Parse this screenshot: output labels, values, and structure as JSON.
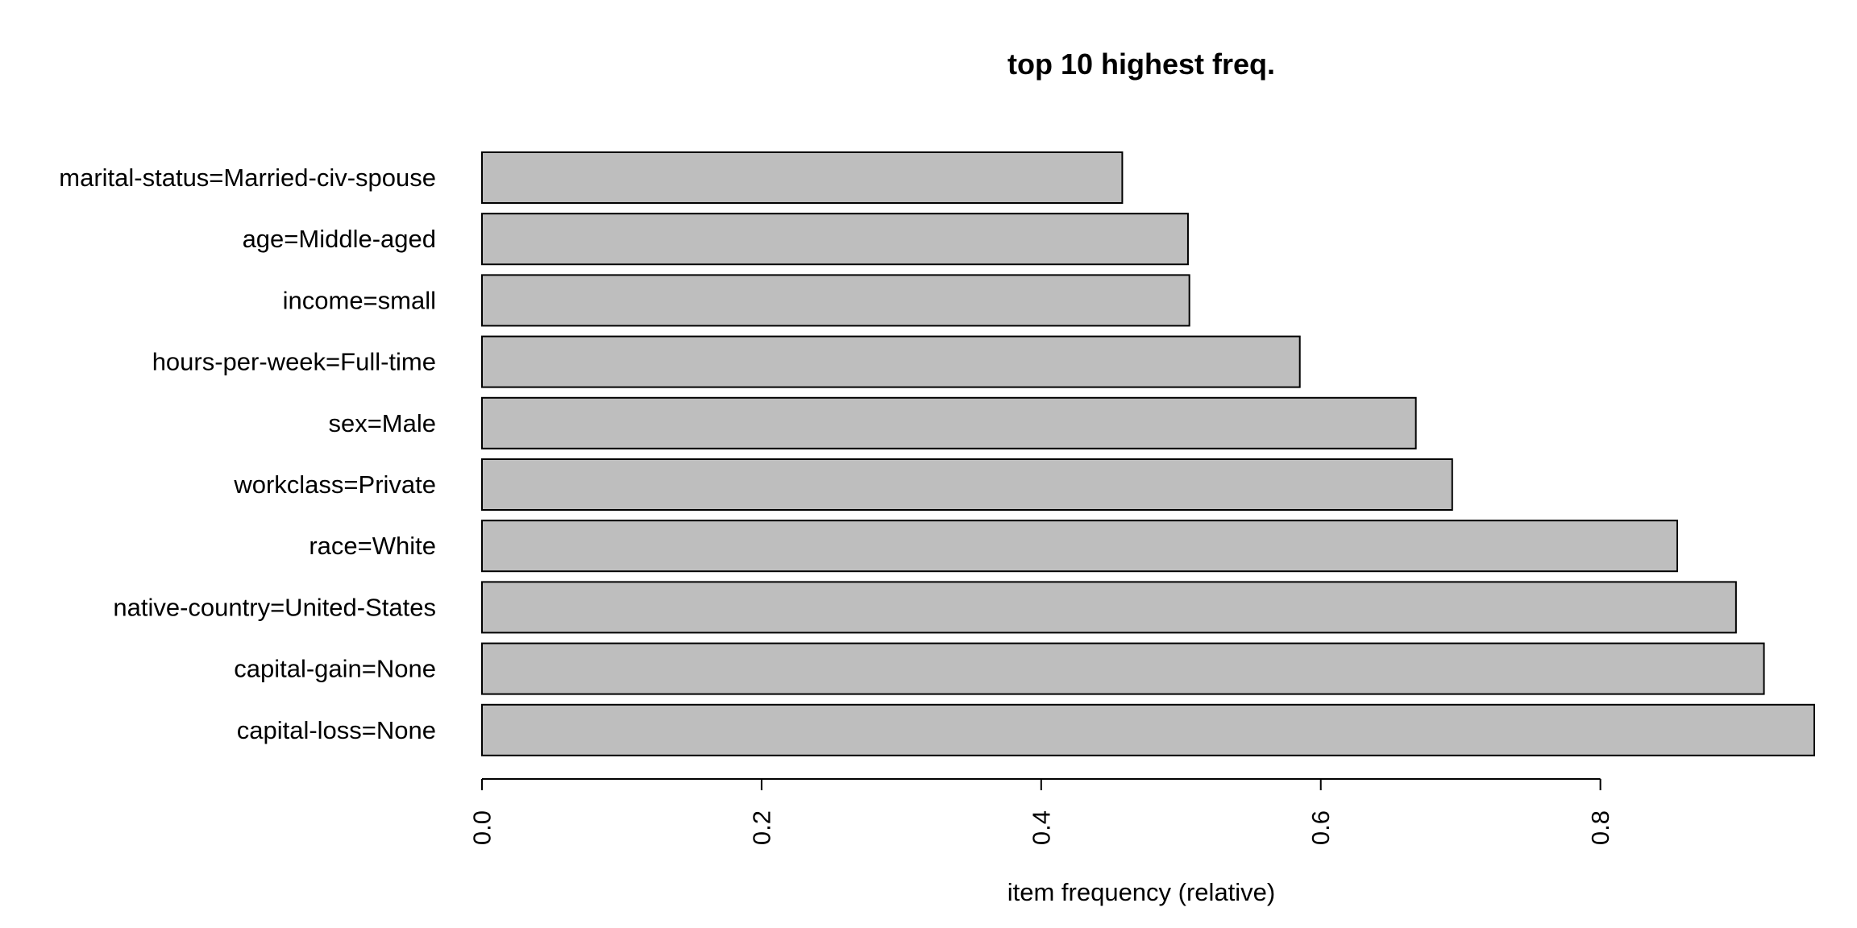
{
  "chart_data": {
    "type": "bar",
    "orientation": "horizontal",
    "title": "top 10 highest freq.",
    "xlabel": "item frequency (relative)",
    "ylabel": "",
    "categories": [
      "marital-status=Married-civ-spouse",
      "age=Middle-aged",
      "income=small",
      "hours-per-week=Full-time",
      "sex=Male",
      "workclass=Private",
      "race=White",
      "native-country=United-States",
      "capital-gain=None",
      "capital-loss=None"
    ],
    "values": [
      0.458,
      0.505,
      0.506,
      0.585,
      0.668,
      0.694,
      0.855,
      0.897,
      0.917,
      0.953
    ],
    "xlim": [
      0,
      0.953
    ],
    "xticks": [
      0.0,
      0.2,
      0.4,
      0.6,
      0.8
    ],
    "xtick_labels": [
      "0.0",
      "0.2",
      "0.4",
      "0.6",
      "0.8"
    ],
    "grid": false,
    "legend": "none"
  },
  "colors": {
    "bar_fill": "#bebebe",
    "bar_stroke": "#000000",
    "background": "#ffffff",
    "text": "#000000"
  }
}
